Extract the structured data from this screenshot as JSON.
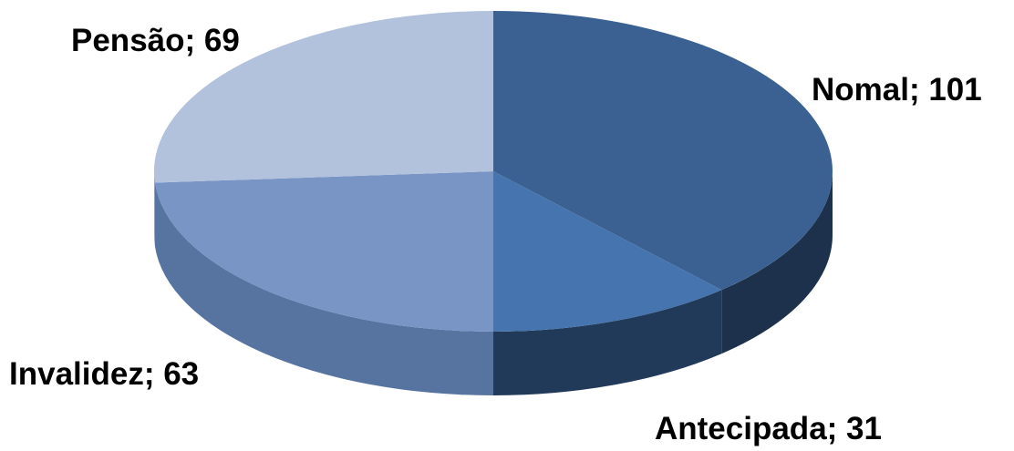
{
  "chart_data": {
    "type": "pie",
    "style": "3d",
    "categories": [
      "Nomal",
      "Antecipada",
      "Invalidez",
      "Pensão"
    ],
    "values": [
      101,
      31,
      63,
      69
    ],
    "labels": [
      {
        "category": "Nomal",
        "text": "Nomal; 101"
      },
      {
        "category": "Antecipada",
        "text": "Antecipada; 31"
      },
      {
        "category": "Invalidez",
        "text": "Invalidez; 63"
      },
      {
        "category": "Pensão",
        "text": "Pensão; 69"
      }
    ],
    "colors": [
      "#3a6192",
      "#4674ae",
      "#7895c6",
      "#b2c1dc"
    ],
    "side_colors": [
      "#1d314c",
      "#223a5a",
      "#5773a0",
      "#8e9fbf"
    ],
    "title": "",
    "legend": "none"
  }
}
